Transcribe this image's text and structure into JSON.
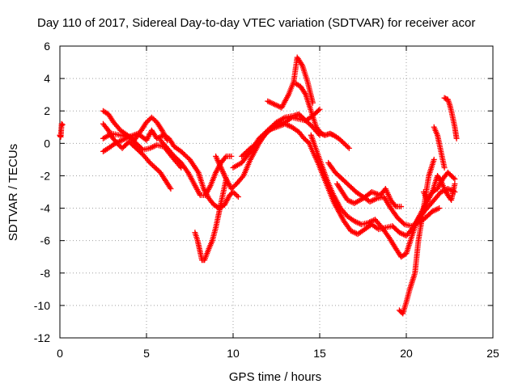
{
  "chart_data": {
    "type": "scatter",
    "title": "Day 110 of 2017, Sidereal Day-to-day VTEC variation (SDTVAR) for receiver acor",
    "xlabel": "GPS time / hours",
    "ylabel": "SDTVAR / TECUs",
    "xlim": [
      0,
      25
    ],
    "ylim": [
      -12,
      6
    ],
    "xticks": [
      "0",
      "5",
      "10",
      "15",
      "20",
      "25"
    ],
    "yticks": [
      "-12",
      "-10",
      "-8",
      "-6",
      "-4",
      "-2",
      "0",
      "2",
      "4",
      "6"
    ],
    "grid": true,
    "marker": "plus",
    "color": "#ff0000",
    "series": [
      {
        "x": [
          0.0,
          0.05,
          0.1,
          0.15
        ],
        "y": [
          0.5,
          0.4,
          1.2,
          1.15
        ]
      },
      {
        "x": [
          2.5,
          3.0,
          3.5,
          4.0,
          4.5,
          5.0,
          5.3,
          5.6,
          6.0,
          6.3,
          6.6,
          7.0,
          7.5,
          8.0,
          8.3,
          8.6,
          8.9,
          9.2,
          9.5,
          9.8,
          10.0,
          10.3
        ],
        "y": [
          0.3,
          0.6,
          0.5,
          0.4,
          0.6,
          0.2,
          0.8,
          0.3,
          0.5,
          0.3,
          -0.2,
          -0.5,
          -1.0,
          -1.8,
          -2.8,
          -3.4,
          -3.8,
          -4.0,
          -3.8,
          -3.2,
          -3.0,
          -3.3
        ]
      },
      {
        "x": [
          2.5,
          2.8,
          3.0,
          3.3,
          3.6,
          4.0,
          4.4,
          4.8,
          5.2,
          5.5,
          5.8,
          6.1,
          6.4
        ],
        "y": [
          1.2,
          0.8,
          0.4,
          0.0,
          -0.3,
          0.1,
          -0.3,
          -0.7,
          -1.2,
          -1.5,
          -1.8,
          -2.3,
          -2.8
        ]
      },
      {
        "x": [
          2.5,
          2.8,
          3.1,
          3.5,
          3.9,
          4.3,
          4.7,
          5.0,
          5.3,
          5.6,
          5.9,
          6.2
        ],
        "y": [
          2.0,
          1.8,
          1.3,
          0.8,
          0.5,
          0.2,
          0.8,
          1.3,
          1.6,
          1.3,
          0.8,
          0.2
        ]
      },
      {
        "x": [
          2.5,
          2.8,
          3.2,
          3.6,
          4.0,
          4.4,
          4.8,
          5.2,
          5.6,
          6.0,
          6.3,
          6.6,
          7.0
        ],
        "y": [
          -0.5,
          -0.3,
          0.0,
          0.2,
          0.4,
          0.0,
          -0.4,
          -0.3,
          -0.1,
          -0.2,
          -0.6,
          -1.0,
          -1.5
        ]
      },
      {
        "x": [
          5.8,
          6.2,
          6.6,
          7.0,
          7.4,
          7.8,
          8.1,
          8.4,
          8.7,
          9.0,
          9.3,
          9.6,
          9.9
        ],
        "y": [
          0.2,
          -0.3,
          -0.8,
          -1.2,
          -1.8,
          -2.6,
          -3.2,
          -3.2,
          -2.6,
          -1.8,
          -1.2,
          -0.8,
          -0.8
        ]
      },
      {
        "x": [
          7.8,
          7.95,
          8.1,
          8.2,
          8.35,
          8.6,
          8.8,
          9.0,
          9.2,
          9.4,
          9.6
        ],
        "y": [
          -5.5,
          -6.0,
          -6.7,
          -7.2,
          -7.2,
          -6.5,
          -6.0,
          -5.2,
          -4.2,
          -3.2,
          -2.2
        ]
      },
      {
        "x": [
          9.0,
          9.3,
          9.6,
          9.9,
          10.2,
          10.6,
          11.0,
          11.5,
          12.0,
          12.5,
          13.0,
          13.4,
          13.8,
          14.1,
          14.4
        ],
        "y": [
          -0.8,
          -1.5,
          -2.2,
          -2.8,
          -2.5,
          -2.0,
          -1.0,
          0.0,
          0.8,
          1.0,
          1.2,
          1.0,
          0.7,
          0.3,
          0.0
        ]
      },
      {
        "x": [
          10.0,
          10.5,
          11.0,
          11.5,
          12.0,
          12.5,
          13.0,
          13.5,
          13.8,
          14.0,
          14.3,
          14.6,
          15.0
        ],
        "y": [
          -1.5,
          -1.2,
          -0.5,
          0.3,
          0.8,
          1.3,
          1.6,
          1.7,
          1.8,
          1.6,
          1.3,
          1.0,
          0.5
        ]
      },
      {
        "x": [
          10.5,
          11.0,
          11.4,
          11.8,
          12.2,
          12.6,
          13.0,
          13.4,
          13.8,
          14.2,
          14.6,
          15.0
        ],
        "y": [
          -0.8,
          -0.3,
          0.0,
          0.5,
          0.9,
          1.2,
          1.3,
          1.6,
          1.5,
          1.4,
          1.7,
          2.1
        ]
      },
      {
        "x": [
          12.0,
          12.4,
          12.8,
          13.2,
          13.5,
          13.7,
          14.0,
          14.3,
          14.6
        ],
        "y": [
          2.6,
          2.4,
          2.2,
          3.0,
          3.8,
          5.3,
          4.8,
          3.8,
          2.5
        ]
      },
      {
        "x": [
          13.6,
          13.9,
          14.2,
          14.5,
          14.8,
          15.1,
          15.3,
          15.6,
          15.8,
          16.1,
          16.4,
          16.7
        ],
        "y": [
          3.7,
          3.5,
          3.0,
          2.0,
          1.0,
          0.6,
          0.5,
          0.6,
          0.5,
          0.3,
          0.0,
          -0.3
        ]
      },
      {
        "x": [
          14.4,
          14.6,
          14.9,
          15.2,
          15.5,
          15.8,
          16.1,
          16.4,
          16.8,
          17.2,
          17.6,
          18.0,
          18.4,
          18.8,
          19.2,
          19.6,
          20.0,
          20.4,
          20.8,
          21.2,
          21.6,
          22.0,
          22.4,
          22.8
        ],
        "y": [
          0.0,
          -0.5,
          -1.2,
          -2.0,
          -2.8,
          -3.6,
          -4.2,
          -4.8,
          -5.4,
          -5.6,
          -5.3,
          -5.0,
          -5.3,
          -5.2,
          -5.1,
          -5.5,
          -5.7,
          -5.2,
          -4.5,
          -4.0,
          -3.5,
          -3.0,
          -2.8,
          -3.0
        ]
      },
      {
        "x": [
          14.5,
          14.8,
          15.1,
          15.4,
          15.8,
          16.2,
          16.6,
          17.0,
          17.4,
          17.8,
          18.2,
          18.6,
          19.0,
          19.4,
          19.7,
          20.0,
          20.3,
          20.6,
          20.9,
          21.2,
          21.5,
          21.8,
          22.1,
          22.4,
          22.8
        ],
        "y": [
          0.5,
          -0.4,
          -1.3,
          -2.2,
          -3.2,
          -4.0,
          -4.5,
          -4.8,
          -5.0,
          -4.9,
          -4.7,
          -5.2,
          -5.8,
          -6.5,
          -7.0,
          -6.8,
          -5.8,
          -4.8,
          -4.2,
          -3.6,
          -3.0,
          -2.8,
          -2.2,
          -1.8,
          -2.2
        ]
      },
      {
        "x": [
          15.5,
          15.9,
          16.3,
          16.7,
          17.1,
          17.5,
          17.9,
          18.3,
          18.7,
          19.1,
          19.5,
          19.9,
          20.3,
          20.7,
          21.1,
          21.5,
          21.9
        ],
        "y": [
          -1.2,
          -1.8,
          -2.2,
          -2.6,
          -3.0,
          -3.3,
          -3.6,
          -3.4,
          -3.3,
          -4.0,
          -4.6,
          -5.0,
          -5.1,
          -4.9,
          -4.6,
          -4.2,
          -4.0
        ]
      },
      {
        "x": [
          16.0,
          16.3,
          16.6,
          17.0,
          17.5,
          18.0,
          18.5,
          18.8,
          19.1,
          19.4,
          19.7
        ],
        "y": [
          -2.5,
          -3.0,
          -3.5,
          -3.7,
          -3.4,
          -3.0,
          -3.2,
          -2.8,
          -3.5,
          -3.9,
          -3.9
        ]
      },
      {
        "x": [
          19.6,
          19.8,
          20.0,
          20.2,
          20.5,
          20.7,
          21.0,
          21.3,
          21.6
        ],
        "y": [
          -10.3,
          -10.5,
          -9.8,
          -9.0,
          -8.0,
          -6.0,
          -4.0,
          -2.0,
          -1.0
        ]
      },
      {
        "x": [
          21.6,
          21.8,
          22.0,
          22.2
        ],
        "y": [
          1.0,
          0.5,
          -0.5,
          -1.5
        ]
      },
      {
        "x": [
          22.2,
          22.4,
          22.5,
          22.6,
          22.7,
          22.8,
          22.9
        ],
        "y": [
          2.8,
          2.7,
          2.4,
          2.0,
          1.5,
          1.0,
          0.3
        ]
      },
      {
        "x": [
          21.0,
          21.2,
          21.5,
          21.8,
          22.0,
          22.2,
          22.4,
          22.6,
          22.8
        ],
        "y": [
          -3.0,
          -3.5,
          -3.0,
          -2.0,
          -2.3,
          -2.8,
          -3.2,
          -3.5,
          -2.5
        ]
      }
    ]
  }
}
